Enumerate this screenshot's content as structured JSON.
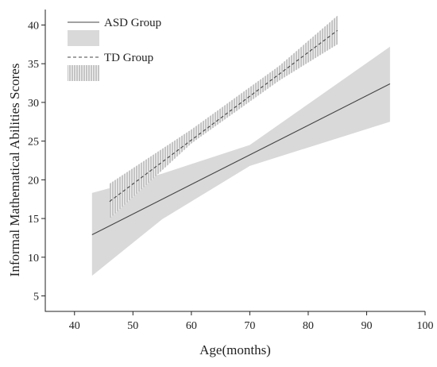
{
  "chart_data": {
    "type": "line",
    "title": "",
    "xlabel": "Age(months)",
    "ylabel": "Informal Mathematical Abilities Scores",
    "xlim": [
      35,
      100
    ],
    "ylim": [
      3,
      42
    ],
    "xticks": [
      40,
      50,
      60,
      70,
      80,
      90,
      100
    ],
    "yticks": [
      5,
      10,
      15,
      20,
      25,
      30,
      35,
      40
    ],
    "grid": false,
    "legend_position": "top-left",
    "series": [
      {
        "name": "ASD Group",
        "line_style": "solid",
        "band_style": "solid-gray",
        "color": "#444444",
        "band_color": "#d9d9d9",
        "x": [
          43,
          94
        ],
        "y": [
          12.9,
          32.4
        ],
        "band_x": [
          43,
          55,
          70,
          94
        ],
        "band_upper": [
          18.3,
          20.8,
          24.5,
          37.2
        ],
        "band_lower": [
          7.6,
          14.9,
          21.8,
          27.5
        ]
      },
      {
        "name": "TD Group",
        "line_style": "dashed",
        "band_style": "vertical-hatch",
        "color": "#444444",
        "band_color": "#888888",
        "x": [
          46,
          85
        ],
        "y": [
          17.2,
          39.3
        ],
        "band_x": [
          46,
          60,
          75,
          85
        ],
        "band_upper": [
          19.5,
          26.5,
          34.7,
          41.2
        ],
        "band_lower": [
          15.0,
          24.7,
          32.8,
          37.5
        ]
      }
    ]
  }
}
